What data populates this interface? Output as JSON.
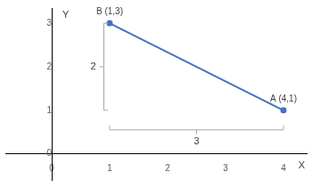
{
  "chart_data": {
    "type": "line",
    "x": [
      1,
      4
    ],
    "values": [
      3,
      1
    ],
    "color": "#4472c4",
    "xlabel": "X",
    "ylabel": "Y",
    "xlim": [
      -0.8,
      4.4
    ],
    "ylim": [
      -0.6,
      3.35
    ],
    "xticks": [
      0,
      1,
      2,
      3,
      4
    ],
    "yticks": [
      0,
      1,
      2,
      3
    ],
    "grid": false,
    "legend": false,
    "annotations": [
      {
        "text": "B (1,3)",
        "x": 1,
        "y": 3
      },
      {
        "text": "A (4,1)",
        "x": 4,
        "y": 1
      },
      {
        "text": "2",
        "x": [
          0.9,
          0.9
        ],
        "y": [
          1,
          3
        ]
      },
      {
        "text": "3",
        "x": [
          1,
          4
        ],
        "y": [
          0.55,
          0.55
        ]
      }
    ]
  }
}
